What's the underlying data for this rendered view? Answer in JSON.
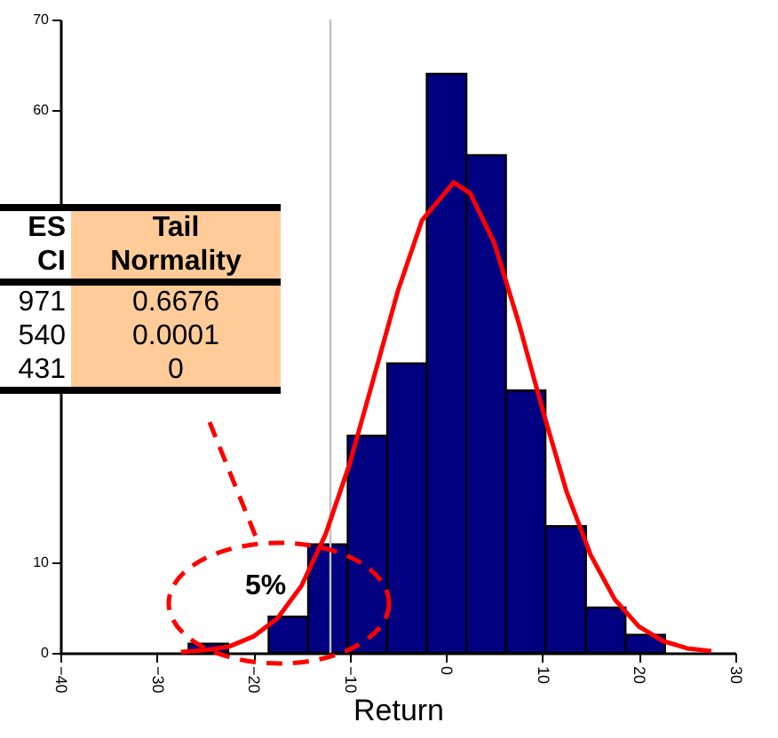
{
  "chart_data": {
    "type": "histogram",
    "xlabel": "Return",
    "bins": [
      -26.7,
      -22.6,
      -18.4,
      -14.3,
      -10.2,
      -6.1,
      -2.0,
      2.1,
      6.2,
      10.3,
      14.5,
      18.6,
      22.7
    ],
    "series": [
      {
        "color": "#000080",
        "values": [
          1,
          0,
          4,
          12,
          24,
          32,
          64,
          55,
          29,
          14,
          5,
          2
        ]
      },
      {
        "type": "line",
        "color": "#ff0000",
        "x": [
          -27.5,
          -25,
          -22.5,
          -20,
          -17.5,
          -15,
          -12.5,
          -10,
          -7.5,
          -5,
          -2.5,
          0.8,
          2.5,
          5,
          7.5,
          10,
          12.5,
          15,
          17.5,
          20,
          22.5,
          25,
          27.5
        ],
        "values": [
          0.1,
          0.3,
          0.7,
          1.8,
          3.8,
          7.4,
          13.1,
          20.9,
          30.4,
          40.0,
          47.8,
          52,
          50.8,
          45.3,
          36.6,
          26.9,
          17.8,
          10.8,
          5.9,
          2.9,
          1.3,
          0.5,
          0.2
        ]
      }
    ],
    "xlim": [
      -40,
      30
    ],
    "xticks": [
      -40,
      -30,
      -20,
      -10,
      0,
      10,
      20,
      30
    ],
    "ylim": [
      0,
      70
    ],
    "yticks": [
      0,
      10,
      60,
      70
    ],
    "ref_lines": [
      {
        "axis": "x",
        "value": -12,
        "color": "#c0c0c0"
      }
    ],
    "annotations": [
      "5%",
      "ES",
      "Tail",
      "CI",
      "Normality",
      "971",
      "0.6676",
      "540",
      "0.0001",
      "431",
      "0"
    ]
  }
}
